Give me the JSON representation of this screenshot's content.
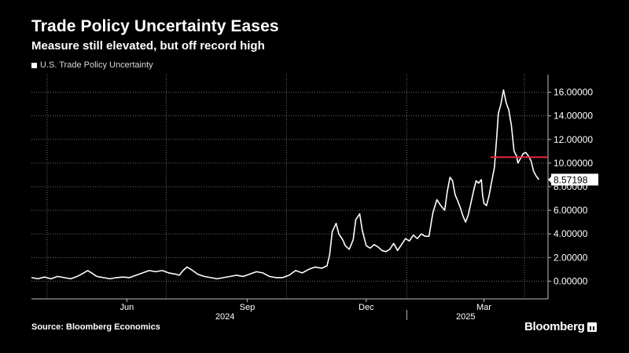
{
  "title": "Trade Policy Uncertainty Eases",
  "subtitle": "Measure still elevated, but off record high",
  "source": "Source: Bloomberg Economics",
  "brand": "Bloomberg",
  "colors": {
    "background": "#000000",
    "line": "#ffffff",
    "highlight": "#e8283d",
    "grid": "#6b6b6b"
  },
  "chart_data": {
    "type": "line",
    "legend": [
      "U.S. Trade Policy Uncertainty"
    ],
    "legend_position": "top-left",
    "y_axis_side": "right",
    "ylim": [
      -1.5,
      17.5
    ],
    "yticks": [
      0,
      2,
      4,
      6,
      8,
      10,
      12,
      14,
      16
    ],
    "ytick_labels": [
      "0.00000",
      "2.00000",
      "4.00000",
      "6.00000",
      "8.00000",
      "10.00000",
      "12.00000",
      "14.00000",
      "16.00000"
    ],
    "xlim": [
      "2024-03-20",
      "2025-04-19"
    ],
    "month_ticks": [
      {
        "label": "Jun",
        "x": "2024-06-01"
      },
      {
        "label": "Sep",
        "x": "2024-09-01"
      },
      {
        "label": "Dec",
        "x": "2024-12-01"
      },
      {
        "label": "Mar",
        "x": "2025-03-01"
      }
    ],
    "vertical_gridlines": [
      "2024-04-01",
      "2024-07-01",
      "2024-10-01",
      "2025-01-01",
      "2025-04-01"
    ],
    "year_labels": [
      {
        "label": "2024",
        "x": "2024-08-15"
      },
      {
        "label": "2025",
        "x": "2025-02-15"
      }
    ],
    "year_divider": "2025-01-01",
    "last_value_label": "8.57198",
    "reference_line": {
      "y": 10.5,
      "x_start": "2025-03-06",
      "x_end": "2025-04-19"
    },
    "series": [
      {
        "name": "U.S. Trade Policy Uncertainty",
        "points": [
          [
            "2024-03-20",
            0.3
          ],
          [
            "2024-03-25",
            0.2
          ],
          [
            "2024-03-30",
            0.35
          ],
          [
            "2024-04-04",
            0.2
          ],
          [
            "2024-04-09",
            0.4
          ],
          [
            "2024-04-14",
            0.3
          ],
          [
            "2024-04-19",
            0.2
          ],
          [
            "2024-04-24",
            0.4
          ],
          [
            "2024-04-29",
            0.7
          ],
          [
            "2024-05-02",
            0.9
          ],
          [
            "2024-05-05",
            0.7
          ],
          [
            "2024-05-09",
            0.4
          ],
          [
            "2024-05-14",
            0.3
          ],
          [
            "2024-05-19",
            0.2
          ],
          [
            "2024-05-24",
            0.3
          ],
          [
            "2024-05-29",
            0.35
          ],
          [
            "2024-06-03",
            0.3
          ],
          [
            "2024-06-08",
            0.5
          ],
          [
            "2024-06-13",
            0.7
          ],
          [
            "2024-06-18",
            0.9
          ],
          [
            "2024-06-23",
            0.8
          ],
          [
            "2024-06-28",
            0.9
          ],
          [
            "2024-07-03",
            0.7
          ],
          [
            "2024-07-08",
            0.6
          ],
          [
            "2024-07-11",
            0.5
          ],
          [
            "2024-07-14",
            0.9
          ],
          [
            "2024-07-17",
            1.2
          ],
          [
            "2024-07-20",
            1.0
          ],
          [
            "2024-07-25",
            0.6
          ],
          [
            "2024-07-30",
            0.4
          ],
          [
            "2024-08-04",
            0.3
          ],
          [
            "2024-08-09",
            0.2
          ],
          [
            "2024-08-14",
            0.3
          ],
          [
            "2024-08-19",
            0.4
          ],
          [
            "2024-08-24",
            0.5
          ],
          [
            "2024-08-29",
            0.4
          ],
          [
            "2024-09-03",
            0.6
          ],
          [
            "2024-09-08",
            0.8
          ],
          [
            "2024-09-13",
            0.7
          ],
          [
            "2024-09-18",
            0.4
          ],
          [
            "2024-09-23",
            0.3
          ],
          [
            "2024-09-28",
            0.3
          ],
          [
            "2024-10-03",
            0.5
          ],
          [
            "2024-10-08",
            0.9
          ],
          [
            "2024-10-13",
            0.7
          ],
          [
            "2024-10-18",
            1.0
          ],
          [
            "2024-10-23",
            1.2
          ],
          [
            "2024-10-28",
            1.1
          ],
          [
            "2024-11-01",
            1.3
          ],
          [
            "2024-11-03",
            2.2
          ],
          [
            "2024-11-05",
            4.2
          ],
          [
            "2024-11-08",
            4.9
          ],
          [
            "2024-11-10",
            4.0
          ],
          [
            "2024-11-13",
            3.5
          ],
          [
            "2024-11-15",
            3.0
          ],
          [
            "2024-11-18",
            2.7
          ],
          [
            "2024-11-21",
            3.5
          ],
          [
            "2024-11-23",
            5.2
          ],
          [
            "2024-11-26",
            5.7
          ],
          [
            "2024-11-28",
            4.3
          ],
          [
            "2024-12-01",
            3.0
          ],
          [
            "2024-12-04",
            2.8
          ],
          [
            "2024-12-07",
            3.1
          ],
          [
            "2024-12-10",
            2.9
          ],
          [
            "2024-12-13",
            2.6
          ],
          [
            "2024-12-16",
            2.5
          ],
          [
            "2024-12-19",
            2.7
          ],
          [
            "2024-12-22",
            3.2
          ],
          [
            "2024-12-25",
            2.6
          ],
          [
            "2024-12-28",
            3.1
          ],
          [
            "2024-12-31",
            3.6
          ],
          [
            "2025-01-03",
            3.4
          ],
          [
            "2025-01-06",
            3.9
          ],
          [
            "2025-01-09",
            3.6
          ],
          [
            "2025-01-12",
            4.0
          ],
          [
            "2025-01-15",
            3.8
          ],
          [
            "2025-01-18",
            3.8
          ],
          [
            "2025-01-21",
            5.8
          ],
          [
            "2025-01-24",
            6.9
          ],
          [
            "2025-01-27",
            6.4
          ],
          [
            "2025-01-30",
            6.0
          ],
          [
            "2025-02-01",
            7.6
          ],
          [
            "2025-02-03",
            8.8
          ],
          [
            "2025-02-05",
            8.5
          ],
          [
            "2025-02-07",
            7.3
          ],
          [
            "2025-02-09",
            6.8
          ],
          [
            "2025-02-11",
            6.2
          ],
          [
            "2025-02-13",
            5.5
          ],
          [
            "2025-02-15",
            5.0
          ],
          [
            "2025-02-17",
            5.6
          ],
          [
            "2025-02-19",
            6.6
          ],
          [
            "2025-02-21",
            7.6
          ],
          [
            "2025-02-23",
            8.5
          ],
          [
            "2025-02-25",
            8.3
          ],
          [
            "2025-02-27",
            8.6
          ],
          [
            "2025-02-28",
            7.3
          ],
          [
            "2025-03-01",
            6.6
          ],
          [
            "2025-03-03",
            6.4
          ],
          [
            "2025-03-05",
            7.3
          ],
          [
            "2025-03-07",
            8.5
          ],
          [
            "2025-03-09",
            9.6
          ],
          [
            "2025-03-11",
            12.5
          ],
          [
            "2025-03-12",
            14.2
          ],
          [
            "2025-03-14",
            15.0
          ],
          [
            "2025-03-16",
            16.2
          ],
          [
            "2025-03-18",
            15.1
          ],
          [
            "2025-03-20",
            14.5
          ],
          [
            "2025-03-22",
            13.2
          ],
          [
            "2025-03-24",
            11.0
          ],
          [
            "2025-03-26",
            10.6
          ],
          [
            "2025-03-27",
            10.0
          ],
          [
            "2025-03-29",
            10.4
          ],
          [
            "2025-03-31",
            10.8
          ],
          [
            "2025-04-02",
            10.9
          ],
          [
            "2025-04-04",
            10.6
          ],
          [
            "2025-04-06",
            10.2
          ],
          [
            "2025-04-08",
            9.3
          ],
          [
            "2025-04-10",
            8.9
          ],
          [
            "2025-04-12",
            8.6
          ]
        ]
      }
    ]
  }
}
